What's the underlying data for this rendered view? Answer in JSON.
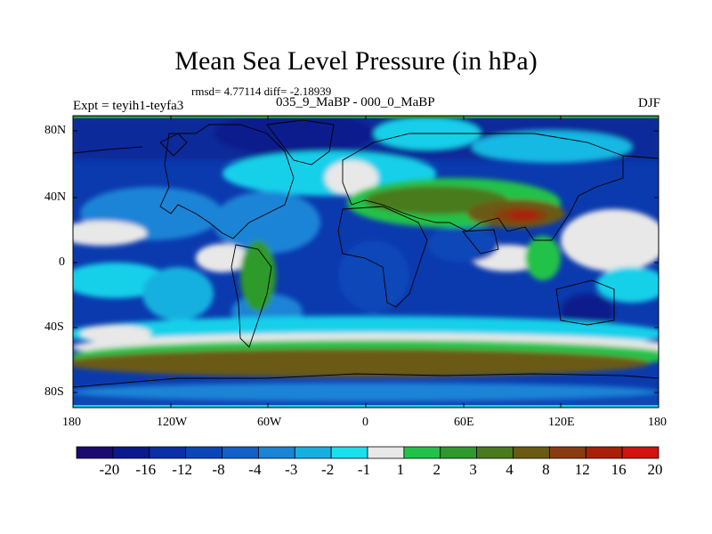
{
  "title": "Mean Sea Level Pressure (in hPa)",
  "stats": "rmsd= 4.77114 diff= -2.18939",
  "expt": "Expt = teyih1-teyfa3",
  "period": "035_9_MaBP - 000_0_MaBP",
  "season": "DJF",
  "lat_ticks": [
    "80N",
    "40N",
    "0",
    "40S",
    "80S"
  ],
  "lon_ticks": [
    "180",
    "120W",
    "60W",
    "0",
    "60E",
    "120E",
    "180"
  ],
  "colorbar": {
    "labels": [
      "-20",
      "-16",
      "-12",
      "-8",
      "-4",
      "-3",
      "-2",
      "-1",
      "1",
      "2",
      "3",
      "4",
      "8",
      "12",
      "16",
      "20"
    ],
    "colors": [
      "#1a0a6e",
      "#0a1a8c",
      "#0b2fa6",
      "#0a46b8",
      "#1260c8",
      "#1a84d6",
      "#15b0e0",
      "#18e0ec",
      "#e8e8e8",
      "#22c24a",
      "#2f9a2c",
      "#4a7a1e",
      "#6a5a12",
      "#8a3c10",
      "#a82008",
      "#d41210"
    ]
  }
}
